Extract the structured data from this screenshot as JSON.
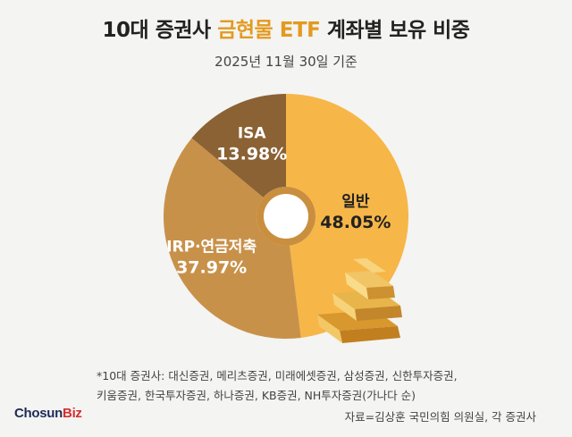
{
  "header": {
    "title_prefix": "10대 증권사 ",
    "title_highlight": "금현물 ETF",
    "title_suffix": " 계좌별 보유 비중",
    "subtitle": "2025년 11월 30일 기준"
  },
  "chart_data": {
    "type": "pie",
    "donut": true,
    "title": "10대 증권사 금현물 ETF 계좌별 보유 비중",
    "subtitle": "2025년 11월 30일 기준",
    "slices": [
      {
        "name": "일반",
        "value": 48.05,
        "label": "48.05%",
        "color": "#f7b648",
        "text_color": "#222222"
      },
      {
        "name": "IRP·연금저축",
        "value": 37.97,
        "label": "37.97%",
        "color": "#c8914a",
        "text_color": "#ffffff"
      },
      {
        "name": "ISA",
        "value": 13.98,
        "label": "13.98%",
        "color": "#8a6234",
        "text_color": "#ffffff"
      }
    ]
  },
  "footer": {
    "note_line1": "*10대 증권사: 대신증권, 메리츠증권, 미래에셋증권, 삼성증권, 신한투자증권,",
    "note_line2": "키움증권, 한국투자증권, 하나증권, KB증권, NH투자증권(가나다 순)",
    "source": "자료=김상훈 국민의힘 의원실, 각 증권사",
    "logo_main": "Chosun",
    "logo_accent": "Biz"
  },
  "colors": {
    "highlight": "#e39a1f",
    "gold_bar": "#e8b54a"
  }
}
